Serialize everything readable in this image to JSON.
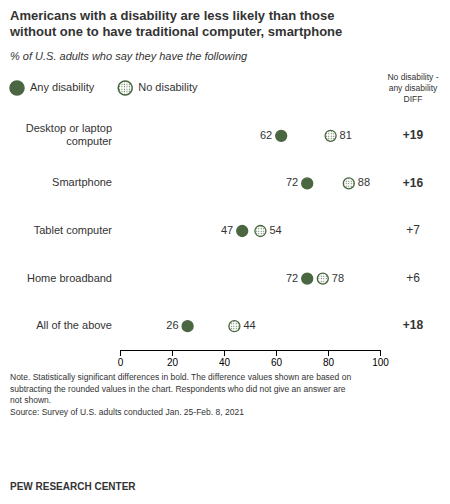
{
  "chart_data": {
    "type": "dot",
    "title": "Americans with a disability are less likely than those\nwithout one to have traditional computer, smartphone",
    "subtitle": "% of U.S. adults who say they have the following",
    "categories": [
      "Desktop or laptop\ncomputer",
      "Smartphone",
      "Tablet computer",
      "Home broadband",
      "All of the above"
    ],
    "series": [
      {
        "name": "Any disability",
        "color": "#4a6741",
        "marker": "filled-circle",
        "values": [
          62,
          72,
          47,
          72,
          26
        ]
      },
      {
        "name": "No disability",
        "color": "#4a6741",
        "marker": "open-circle",
        "values": [
          81,
          88,
          54,
          78,
          44
        ]
      }
    ],
    "xlim": [
      0,
      100
    ],
    "xticks": [
      0,
      20,
      40,
      60,
      80,
      100
    ],
    "data_labels": true,
    "legend": "top",
    "diff_header": "No disability -\nany disability\nDIFF",
    "diff_values": [
      19,
      16,
      7,
      6,
      18
    ],
    "diff_labels": [
      "+19",
      "+16",
      "+7",
      "+6",
      "+18"
    ],
    "diff_significant": [
      true,
      true,
      false,
      false,
      true
    ],
    "note": "Note. Statistically significant differences in bold. The difference values shown are based on\nsubtracting the rounded values in the chart. Respondents who did not give an answer are\nnot shown.\nSource: Survey of U.S. adults conducted Jan. 25-Feb. 8, 2021",
    "source_label": "PEW RESEARCH CENTER"
  }
}
